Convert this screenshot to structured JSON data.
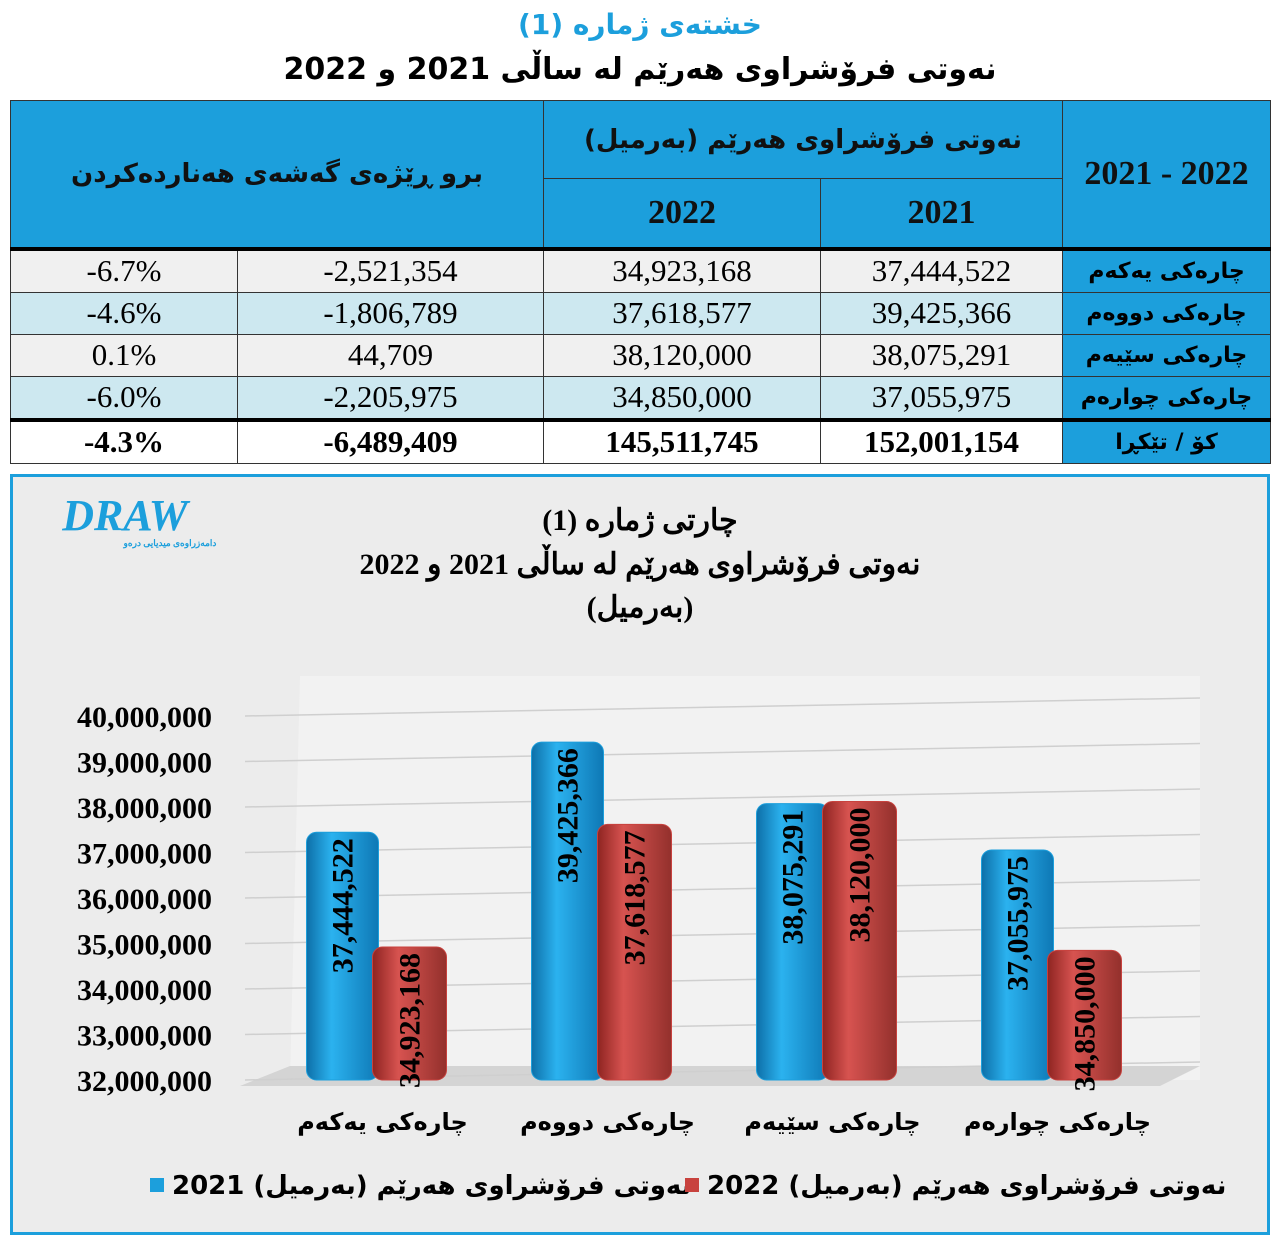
{
  "header": {
    "title": "خشتەی ژمارە (1)",
    "subtitle": "نەوتی فرۆشراوی هەرێم لە ساڵی 2021 و 2022"
  },
  "table": {
    "header": {
      "period": "2021 - 2022",
      "group": "نەوتی فرۆشراوی هەرێم (بەرمیل)",
      "year_2021": "2021",
      "year_2022": "2022",
      "growth": "برو ڕێژەی گەشەی هەناردەکردن"
    },
    "rows": [
      [
        "چارەکی یەکەم",
        "37,444,522",
        "34,923,168",
        "-2,521,354",
        "-6.7%"
      ],
      [
        "چارەکی دووەم",
        "39,425,366",
        "37,618,577",
        "-1,806,789",
        "-4.6%"
      ],
      [
        "چارەکی سێیەم",
        "38,075,291",
        "38,120,000",
        "44,709",
        "0.1%"
      ],
      [
        "چارەکی چوارەم",
        "37,055,975",
        "34,850,000",
        "-2,205,975",
        "-6.0%"
      ],
      [
        "کۆ / تێکڕا",
        "152,001,154",
        "145,511,745",
        "-6,489,409",
        "-4.3%"
      ]
    ]
  },
  "logo": {
    "text": "DRAW",
    "tagline": "دامەزراوەی میدیایی درەو"
  },
  "chart_data": {
    "type": "bar",
    "title": "چارتی ژمارە (1)",
    "subtitle": [
      "نەوتی فرۆشراوی هەرێم لە ساڵی 2021 و 2022",
      "(بەرمیل)"
    ],
    "categories": [
      "چارەکی یەکەم",
      "چارەکی دووەم",
      "چارەکی سێیەم",
      "چارەکی چوارەم"
    ],
    "series": [
      {
        "name": "نەوتی فرۆشراوی هەرێم (بەرمیل) 2021",
        "color": "#1c9fdc",
        "values": [
          37444522,
          39425366,
          38075291,
          37055975
        ],
        "value_labels": [
          "37,444,522",
          "39,425,366",
          "38,075,291",
          "37,055,975"
        ]
      },
      {
        "name": "نەوتی فرۆشراوی هەرێم (بەرمیل) 2022",
        "color": "#c8423e",
        "values": [
          34923168,
          37618577,
          38120000,
          34850000
        ],
        "value_labels": [
          "34,923,168",
          "37,618,577",
          "38,120,000",
          "34,850,000"
        ]
      }
    ],
    "ylim": [
      32000000,
      40000000
    ],
    "yticks": [
      {
        "value": 32000000,
        "label": "32,000,000"
      },
      {
        "value": 33000000,
        "label": "33,000,000"
      },
      {
        "value": 34000000,
        "label": "34,000,000"
      },
      {
        "value": 35000000,
        "label": "35,000,000"
      },
      {
        "value": 36000000,
        "label": "36,000,000"
      },
      {
        "value": 37000000,
        "label": "37,000,000"
      },
      {
        "value": 38000000,
        "label": "38,000,000"
      },
      {
        "value": 39000000,
        "label": "39,000,000"
      },
      {
        "value": 40000000,
        "label": "40,000,000"
      }
    ],
    "grid": true
  }
}
